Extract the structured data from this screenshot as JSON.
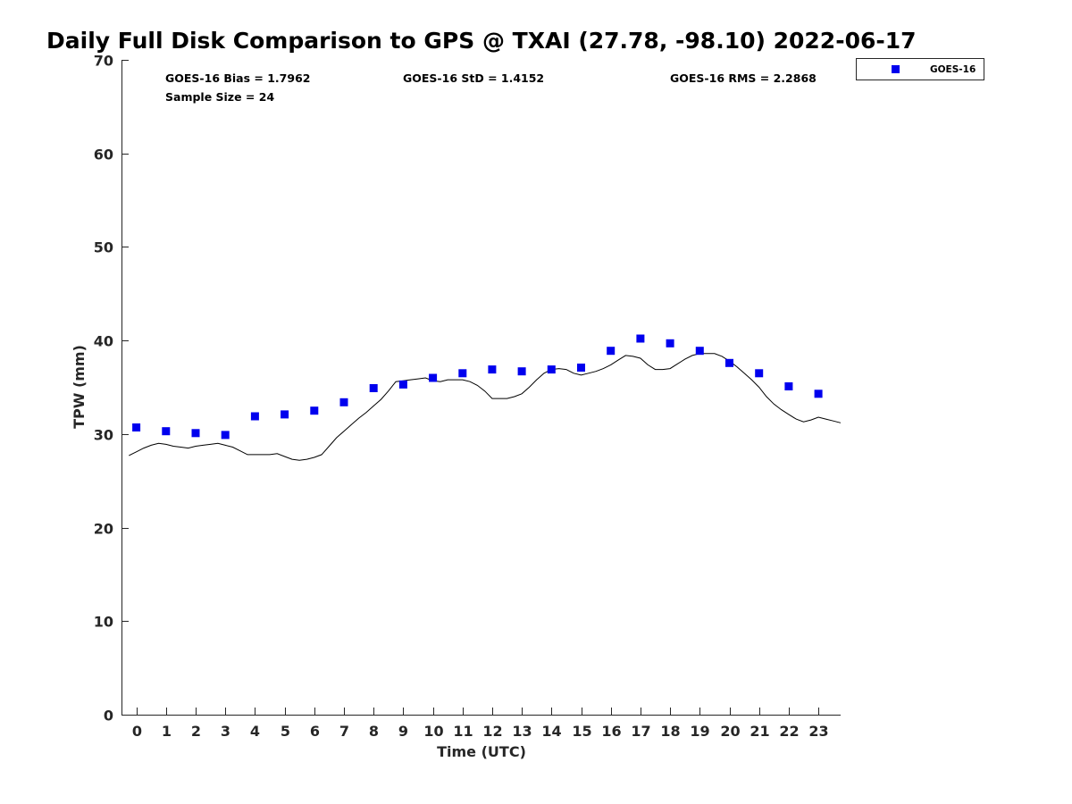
{
  "chart_data": {
    "type": "scatter",
    "title": "Daily Full Disk Comparison to GPS @ TXAI (27.78, -98.10) 2022-06-17",
    "xlabel": "Time (UTC)",
    "ylabel": "TPW (mm)",
    "xlim": [
      -0.5,
      23.75
    ],
    "ylim": [
      0,
      70
    ],
    "x_ticks": [
      0,
      1,
      2,
      3,
      4,
      5,
      6,
      7,
      8,
      9,
      10,
      11,
      12,
      13,
      14,
      15,
      16,
      17,
      18,
      19,
      20,
      21,
      22,
      23
    ],
    "y_ticks": [
      0,
      10,
      20,
      30,
      40,
      50,
      60,
      70
    ],
    "grid": false,
    "legend_position": "top-right, outside plot",
    "stats": {
      "bias": "GOES-16 Bias = 1.7962",
      "std": "GOES-16 StD = 1.4152",
      "rms": "GOES-16 RMS = 2.2868",
      "sample": "Sample Size = 24"
    },
    "series": [
      {
        "name": "GOES-16",
        "kind": "markers",
        "marker": "square",
        "color": "#0000ee",
        "x": [
          0,
          1,
          2,
          3,
          4,
          5,
          6,
          7,
          8,
          9,
          10,
          11,
          12,
          13,
          14,
          15,
          16,
          17,
          18,
          19,
          20,
          21,
          22,
          23
        ],
        "y": [
          30.7,
          30.3,
          30.1,
          29.9,
          31.9,
          32.1,
          32.5,
          33.4,
          34.9,
          35.3,
          36.0,
          36.5,
          36.9,
          36.7,
          36.9,
          37.1,
          38.9,
          40.2,
          39.7,
          38.9,
          37.6,
          36.5,
          35.1,
          34.3
        ]
      },
      {
        "kind": "line",
        "color": "#000000",
        "x": [
          -0.25,
          0.0,
          0.25,
          0.5,
          0.75,
          1.0,
          1.25,
          1.5,
          1.75,
          2.0,
          2.25,
          2.5,
          2.75,
          3.0,
          3.25,
          3.5,
          3.75,
          4.0,
          4.25,
          4.5,
          4.75,
          5.0,
          5.25,
          5.5,
          5.75,
          6.0,
          6.25,
          6.5,
          6.75,
          7.0,
          7.25,
          7.5,
          7.75,
          8.0,
          8.25,
          8.5,
          8.75,
          9.0,
          9.25,
          9.5,
          9.75,
          10.0,
          10.25,
          10.5,
          10.75,
          11.0,
          11.25,
          11.5,
          11.75,
          12.0,
          12.25,
          12.5,
          12.75,
          13.0,
          13.25,
          13.5,
          13.75,
          14.0,
          14.25,
          14.5,
          14.75,
          15.0,
          15.25,
          15.5,
          15.75,
          16.0,
          16.25,
          16.5,
          16.75,
          17.0,
          17.25,
          17.5,
          17.75,
          18.0,
          18.25,
          18.5,
          18.75,
          19.0,
          19.25,
          19.5,
          19.75,
          20.0,
          20.25,
          20.5,
          20.75,
          21.0,
          21.25,
          21.5,
          21.75,
          22.0,
          22.25,
          22.5,
          22.75,
          23.0,
          23.25,
          23.5,
          23.75
        ],
        "y": [
          27.7,
          28.1,
          28.5,
          28.8,
          29.0,
          28.9,
          28.7,
          28.6,
          28.5,
          28.7,
          28.8,
          28.9,
          29.0,
          28.8,
          28.6,
          28.2,
          27.8,
          27.8,
          27.8,
          27.8,
          27.9,
          27.6,
          27.3,
          27.2,
          27.3,
          27.5,
          27.8,
          28.7,
          29.6,
          30.3,
          31.0,
          31.7,
          32.3,
          33.0,
          33.7,
          34.6,
          35.6,
          35.7,
          35.8,
          35.9,
          36.0,
          35.7,
          35.6,
          35.8,
          35.8,
          35.8,
          35.6,
          35.2,
          34.6,
          33.8,
          33.8,
          33.8,
          34.0,
          34.3,
          35.0,
          35.8,
          36.5,
          36.9,
          37.0,
          36.9,
          36.5,
          36.3,
          36.5,
          36.7,
          37.0,
          37.4,
          37.9,
          38.4,
          38.3,
          38.1,
          37.4,
          36.9,
          36.9,
          37.0,
          37.5,
          38.0,
          38.4,
          38.6,
          38.6,
          38.6,
          38.3,
          37.8,
          37.2,
          36.5,
          35.8,
          35.0,
          34.0,
          33.2,
          32.6,
          32.1,
          31.6,
          31.3,
          31.5,
          31.8,
          31.6,
          31.4,
          31.2
        ]
      }
    ]
  }
}
